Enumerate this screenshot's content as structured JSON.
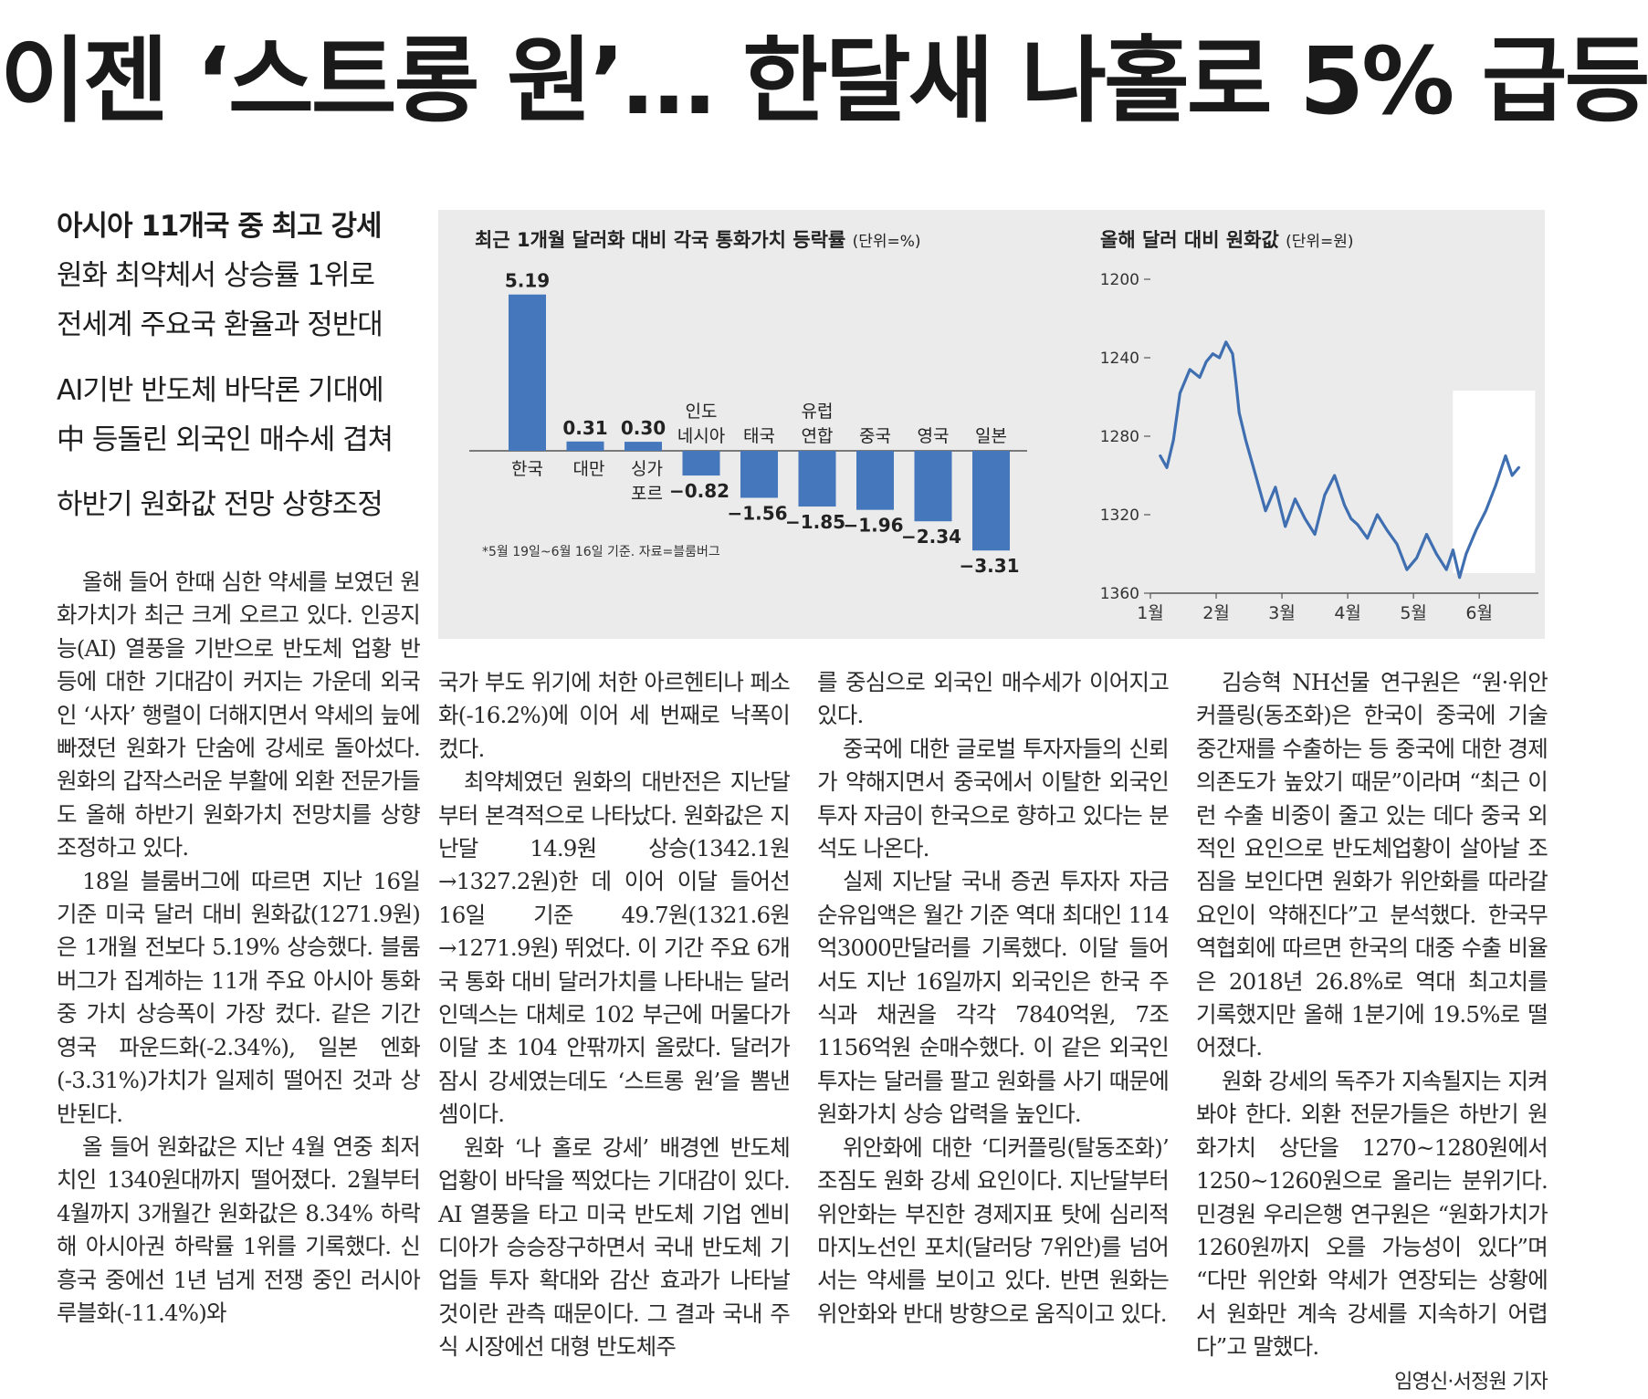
{
  "headline": "이젠 ‘스트롱 원’… 한달새 나홀로 5% 급등",
  "subheads": [
    "아시아 11개국 중 최고 강세",
    "원화 최약체서 상승률 1위로",
    "전세계 주요국 환율과 정반대",
    "AI기반 반도체 바닥론 기대에",
    "中 등돌린 외국인 매수세 겹쳐",
    "하반기 원화값 전망 상향조정"
  ],
  "chart_data": [
    {
      "type": "bar",
      "title": "최근 1개월 달러화 대비 각국 통화가치 등락률",
      "unit": "(단위=%)",
      "categories": [
        "한국",
        "대만",
        "싱가\n포르",
        "인도\n네시아",
        "태국",
        "유럽\n연합",
        "중국",
        "영국",
        "일본"
      ],
      "values": [
        5.19,
        0.31,
        0.3,
        -0.82,
        -1.56,
        -1.85,
        -1.96,
        -2.34,
        -3.31
      ],
      "value_labels": [
        "5.19",
        "0.31",
        "0.30",
        "−0.82",
        "−1.56",
        "−1.85",
        "−1.96",
        "−2.34",
        "−3.31"
      ],
      "note": "*5월 19일~6월 16일 기준. 자료=블룸버그",
      "bar_color": "#4477bb"
    },
    {
      "type": "line",
      "title": "올해 달러 대비 원화값",
      "unit": "(단위=원)",
      "y_ticks": [
        "1200",
        "1240",
        "1280",
        "1320",
        "1360"
      ],
      "x_ticks": [
        "1월",
        "2월",
        "3월",
        "4월",
        "5월",
        "6월"
      ],
      "ylim": [
        1360,
        1200
      ],
      "y_inverted": true,
      "xlim": [
        0,
        5.9
      ],
      "x": [
        0.15,
        0.25,
        0.35,
        0.45,
        0.6,
        0.75,
        0.85,
        0.95,
        1.05,
        1.15,
        1.25,
        1.3,
        1.35,
        1.45,
        1.6,
        1.75,
        1.9,
        2.05,
        2.2,
        2.35,
        2.5,
        2.65,
        2.8,
        2.95,
        3.05,
        3.15,
        3.3,
        3.45,
        3.6,
        3.75,
        3.9,
        4.05,
        4.2,
        4.35,
        4.5,
        4.6,
        4.7,
        4.8,
        4.95,
        5.1,
        5.25,
        5.4,
        5.5,
        5.6
      ],
      "values": [
        1290,
        1296,
        1282,
        1258,
        1246,
        1250,
        1242,
        1238,
        1240,
        1232,
        1238,
        1252,
        1268,
        1282,
        1300,
        1318,
        1306,
        1326,
        1312,
        1322,
        1330,
        1310,
        1300,
        1315,
        1322,
        1325,
        1332,
        1320,
        1328,
        1335,
        1348,
        1342,
        1330,
        1340,
        1348,
        1338,
        1352,
        1340,
        1328,
        1318,
        1305,
        1290,
        1300,
        1296
      ],
      "highlight": "6월 구간 강조 박스",
      "line_color": "#3f6fb0"
    }
  ],
  "columns": {
    "col1": [
      "올해 들어 한때 심한 약세를 보였던 원화가치가 최근 크게 오르고 있다. 인공지능(AI) 열풍을 기반으로 반도체 업황 반등에 대한 기대감이 커지는 가운데 외국인 ‘사자’ 행렬이 더해지면서 약세의 늪에 빠졌던 원화가 단숨에 강세로 돌아섰다. 원화의 갑작스러운 부활에 외환 전문가들도 올해 하반기 원화가치 전망치를 상향 조정하고 있다.",
      "18일 블룸버그에 따르면 지난 16일 기준 미국 달러 대비 원화값(1271.9원)은 1개월 전보다 5.19% 상승했다. 블룸버그가 집계하는 11개 주요 아시아 통화 중 가치 상승폭이 가장 컸다. 같은 기간 영국 파운드화(-2.34%), 일본 엔화(-3.31%)가치가 일제히 떨어진 것과 상반된다.",
      "올 들어 원화값은 지난 4월 연중 최저치인 1340원대까지 떨어졌다. 2월부터 4월까지 3개월간 원화값은 8.34% 하락해 아시아권 하락률 1위를 기록했다. 신흥국 중에선 1년 넘게 전쟁 중인 러시아 루블화(-11.4%)와"
    ],
    "col2": [
      "국가 부도 위기에 처한 아르헨티나 페소화(-16.2%)에 이어 세 번째로 낙폭이 컸다.",
      "최약체였던 원화의 대반전은 지난달부터 본격적으로 나타났다. 원화값은 지난달 14.9원 상승(1342.1원→1327.2원)한 데 이어 이달 들어선 16일 기준 49.7원(1321.6원→1271.9원) 뛰었다. 이 기간 주요 6개국 통화 대비 달러가치를 나타내는 달러인덱스는 대체로 102 부근에 머물다가 이달 초 104 안팎까지 올랐다. 달러가 잠시 강세였는데도 ‘스트롱 원’을 뽐낸 셈이다.",
      "원화 ‘나 홀로 강세’ 배경엔 반도체 업황이 바닥을 찍었다는 기대감이 있다. AI 열풍을 타고 미국 반도체 기업 엔비디아가 승승장구하면서 국내 반도체 기업들 투자 확대와 감산 효과가 나타날 것이란 관측 때문이다. 그 결과 국내 주식 시장에선 대형 반도체주"
    ],
    "col3": [
      "를 중심으로 외국인 매수세가 이어지고 있다.",
      "중국에 대한 글로벌 투자자들의 신뢰가 약해지면서 중국에서 이탈한 외국인 투자 자금이 한국으로 향하고 있다는 분석도 나온다.",
      "실제 지난달 국내 증권 투자자 자금 순유입액은 월간 기준 역대 최대인 114억3000만달러를 기록했다. 이달 들어서도 지난 16일까지 외국인은 한국 주식과 채권을 각각 7840억원, 7조1156억원 순매수했다. 이 같은 외국인 투자는 달러를 팔고 원화를 사기 때문에 원화가치 상승 압력을 높인다.",
      "위안화에 대한 ‘디커플링(탈동조화)’ 조짐도 원화 강세 요인이다. 지난달부터 위안화는 부진한 경제지표 탓에 심리적 마지노선인 포치(달러당 7위안)를 넘어서는 약세를 보이고 있다. 반면 원화는 위안화와 반대 방향으로 움직이고 있다."
    ],
    "col4": [
      "김승혁 NH선물 연구원은 “원·위안 커플링(동조화)은 한국이 중국에 기술 중간재를 수출하는 등 중국에 대한 경제 의존도가 높았기 때문”이라며 “최근 이런 수출 비중이 줄고 있는 데다 중국 외적인 요인으로 반도체업황이 살아날 조짐을 보인다면 원화가 위안화를 따라갈 요인이 약해진다”고 분석했다. 한국무역협회에 따르면 한국의 대중 수출 비율은 2018년 26.8%로 역대 최고치를 기록했지만 올해 1분기에 19.5%로 떨어졌다.",
      "원화 강세의 독주가 지속될지는 지켜봐야 한다. 외환 전문가들은 하반기 원화가치 상단을 1270~1280원에서 1250~1260원으로 올리는 분위기다. 민경원 우리은행 연구원은 “원화가치가 1260원까지 오를 가능성이 있다”며 “다만 위안화 약세가 연장되는 상황에서 원화만 계속 강세를 지속하기 어렵다”고 말했다."
    ],
    "byline": "임영신·서정원 기자"
  }
}
